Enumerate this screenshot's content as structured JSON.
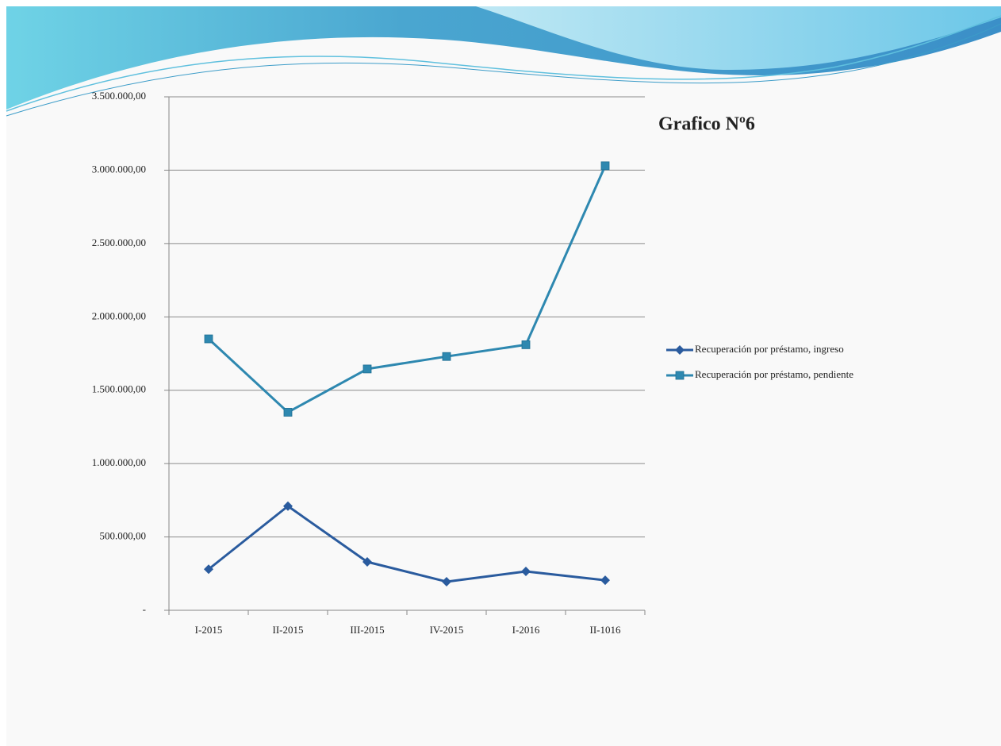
{
  "chart_data": {
    "type": "line",
    "title": "Grafico Nº6",
    "categories": [
      "I-2015",
      "II-2015",
      "III-2015",
      "IV-2015",
      "I-2016",
      "II-1016"
    ],
    "series": [
      {
        "name": "Recuperación por préstamo, ingreso",
        "color": "#2a5b9e",
        "marker": "diamond",
        "values": [
          280000,
          710000,
          330000,
          195000,
          265000,
          205000
        ]
      },
      {
        "name": "Recuperación por préstamo, pendiente",
        "color": "#2e88b0",
        "marker": "square",
        "values": [
          1850000,
          1350000,
          1645000,
          1730000,
          1810000,
          3030000
        ]
      }
    ],
    "ylim": [
      0,
      3500000
    ],
    "yticks": [
      {
        "value": 0,
        "label": "-"
      },
      {
        "value": 500000,
        "label": "500.000,00"
      },
      {
        "value": 1000000,
        "label": "1.000.000,00"
      },
      {
        "value": 1500000,
        "label": "1.500.000,00"
      },
      {
        "value": 2000000,
        "label": "2.000.000,00"
      },
      {
        "value": 2500000,
        "label": "2.500.000,00"
      },
      {
        "value": 3000000,
        "label": "3.000.000,00"
      },
      {
        "value": 3500000,
        "label": "3.500.000,00"
      }
    ],
    "grid": true,
    "legend": "right"
  }
}
